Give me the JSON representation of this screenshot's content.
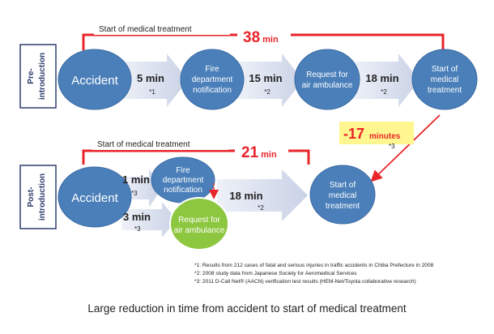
{
  "pre": {
    "side_label_line1": "Pre-",
    "side_label_line2": "introduction",
    "bracket_label": "Start of medical treatment",
    "total_value": "38",
    "total_unit": "min",
    "nodes": {
      "accident": "Accident",
      "fire_line1": "Fire",
      "fire_line2": "department",
      "fire_line3": "notification",
      "request_line1": "Request for",
      "request_line2": "air ambulance",
      "start_line1": "Start of",
      "start_line2": "medical",
      "start_line3": "treatment"
    },
    "steps": [
      {
        "value": "5 min",
        "note": "*1"
      },
      {
        "value": "15 min",
        "note": "*2"
      },
      {
        "value": "18 min",
        "note": "*2"
      }
    ]
  },
  "reduction": {
    "value": "-17",
    "unit": "minutes",
    "note": "*3"
  },
  "post": {
    "side_label_line1": "Post-",
    "side_label_line2": "introduction",
    "bracket_label": "Start of medical treatment",
    "total_value": "21",
    "total_unit": "min",
    "nodes": {
      "accident": "Accident",
      "fire_line1": "Fire",
      "fire_line2": "department",
      "fire_line3": "notification",
      "request_line1": "Request for",
      "request_line2": "air ambulance",
      "start_line1": "Start of",
      "start_line2": "medical",
      "start_line3": "treatment"
    },
    "steps": [
      {
        "value": "1 min",
        "note": "*3"
      },
      {
        "value": "3 min",
        "note": "*3"
      },
      {
        "value": "18 min",
        "note": "*2"
      }
    ]
  },
  "footnotes": [
    "*1: Results from 212 cases of fatal and serious injuries in traffic accidents in Chiba Prefecture in 2008",
    "*2: 2008 study data from Japanese Society for Aeromedical Services",
    "*3: 2011 D-Call Net® (AACN) verification test results (HEM-Net/Toyota collaborative research)"
  ],
  "caption": "Large reduction in time from accident to start of medical treatment",
  "colors": {
    "node_blue": "#4a7fba",
    "node_green": "#8dc63f",
    "arrow_fill": "#d5dcec",
    "bracket_red": "#e8252a",
    "highlight_yellow": "#fff68f"
  }
}
